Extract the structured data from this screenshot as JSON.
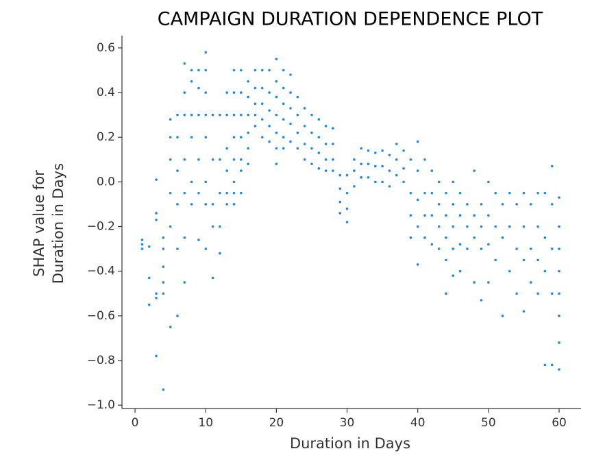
{
  "chart_data": {
    "type": "scatter",
    "title": "CAMPAIGN DURATION DEPENDENCE PLOT",
    "xlabel": "Duration in Days",
    "ylabel": [
      "SHAP value for",
      "Duration in Days"
    ],
    "color": "#1e88e5",
    "xlim": [
      -1.85,
      63.1
    ],
    "ylim": [
      -1.015,
      0.655
    ],
    "xticks": [
      0,
      10,
      20,
      30,
      40,
      50,
      60
    ],
    "yticks": [
      {
        "value": -1.0,
        "label": "−1.0"
      },
      {
        "value": -0.8,
        "label": "−0.8"
      },
      {
        "value": -0.6,
        "label": "−0.6"
      },
      {
        "value": -0.4,
        "label": "−0.4"
      },
      {
        "value": -0.2,
        "label": "−0.2"
      },
      {
        "value": 0.0,
        "label": "0.0"
      },
      0.2,
      0.4,
      0.6
    ],
    "x": [
      1,
      1,
      1,
      2,
      2,
      2,
      3,
      3,
      3,
      3,
      3,
      3,
      4,
      4,
      4,
      4,
      4,
      4,
      5,
      5,
      5,
      5,
      5,
      5,
      6,
      6,
      6,
      6,
      6,
      6,
      7,
      7,
      7,
      7,
      7,
      7,
      7,
      8,
      8,
      8,
      8,
      8,
      8,
      9,
      9,
      9,
      9,
      9,
      9,
      10,
      10,
      10,
      10,
      10,
      10,
      10,
      10,
      11,
      11,
      11,
      11,
      11,
      12,
      12,
      12,
      12,
      12,
      13,
      13,
      13,
      13,
      13,
      13,
      14,
      14,
      14,
      14,
      14,
      14,
      14,
      14,
      15,
      15,
      15,
      15,
      15,
      15,
      15,
      16,
      16,
      16,
      16,
      16,
      16,
      17,
      17,
      17,
      17,
      17,
      18,
      18,
      18,
      18,
      18,
      19,
      19,
      19,
      19,
      19,
      20,
      20,
      20,
      20,
      20,
      20,
      20,
      21,
      21,
      21,
      21,
      21,
      21,
      22,
      22,
      22,
      22,
      22,
      23,
      23,
      23,
      23,
      24,
      24,
      24,
      24,
      25,
      25,
      25,
      25,
      26,
      26,
      26,
      26,
      27,
      27,
      27,
      27,
      28,
      28,
      28,
      28,
      29,
      29,
      29,
      29,
      30,
      30,
      30,
      30,
      31,
      31,
      31,
      32,
      32,
      32,
      33,
      33,
      33,
      34,
      34,
      34,
      35,
      35,
      35,
      36,
      36,
      36,
      37,
      37,
      37,
      38,
      38,
      38,
      39,
      39,
      39,
      39,
      40,
      40,
      40,
      40,
      40,
      41,
      41,
      41,
      41,
      42,
      42,
      42,
      42,
      43,
      43,
      43,
      43,
      44,
      44,
      44,
      44,
      44,
      45,
      45,
      45,
      45,
      45,
      46,
      46,
      46,
      46,
      47,
      47,
      47,
      48,
      48,
      48,
      48,
      49,
      49,
      49,
      49,
      50,
      50,
      50,
      50,
      51,
      51,
      51,
      52,
      52,
      52,
      53,
      53,
      53,
      54,
      54,
      54,
      55,
      55,
      55,
      55,
      56,
      56,
      56,
      57,
      57,
      57,
      57,
      58,
      58,
      58,
      58,
      59,
      59,
      59,
      59,
      59,
      60,
      60,
      60,
      60,
      60,
      60,
      60,
      60
    ],
    "values": [
      -0.26,
      -0.3,
      -0.28,
      -0.29,
      -0.43,
      -0.55,
      -0.78,
      -0.52,
      -0.14,
      0.01,
      -0.5,
      -0.17,
      -0.93,
      -0.45,
      -0.3,
      -0.25,
      -0.38,
      -0.5,
      -0.65,
      0.2,
      0.1,
      -0.05,
      0.28,
      -0.2,
      -0.6,
      -0.3,
      0.05,
      0.2,
      0.3,
      -0.1,
      0.53,
      0.4,
      0.3,
      0.1,
      -0.05,
      -0.25,
      -0.45,
      0.5,
      0.45,
      0.3,
      0.2,
      0.0,
      -0.1,
      0.5,
      0.42,
      0.3,
      0.1,
      -0.05,
      -0.26,
      0.58,
      0.5,
      0.4,
      0.3,
      0.2,
      0.0,
      -0.1,
      -0.3,
      0.3,
      0.1,
      -0.1,
      -0.2,
      -0.43,
      0.3,
      0.1,
      -0.05,
      -0.2,
      -0.32,
      0.4,
      0.3,
      0.15,
      0.05,
      -0.05,
      -0.1,
      0.5,
      0.4,
      0.3,
      0.2,
      0.1,
      0.0,
      -0.05,
      -0.1,
      0.5,
      0.4,
      0.3,
      0.2,
      0.1,
      0.05,
      -0.05,
      0.45,
      0.38,
      0.3,
      0.22,
      0.15,
      0.08,
      0.5,
      0.42,
      0.35,
      0.3,
      0.25,
      0.5,
      0.42,
      0.35,
      0.28,
      0.2,
      0.5,
      0.4,
      0.32,
      0.25,
      0.18,
      0.55,
      0.45,
      0.38,
      0.3,
      0.22,
      0.15,
      0.08,
      0.5,
      0.42,
      0.35,
      0.28,
      0.2,
      0.15,
      0.48,
      0.4,
      0.33,
      0.26,
      0.18,
      0.38,
      0.3,
      0.22,
      0.15,
      0.33,
      0.25,
      0.17,
      0.1,
      0.3,
      0.22,
      0.15,
      0.08,
      0.28,
      0.2,
      0.13,
      0.06,
      0.25,
      0.17,
      0.1,
      0.05,
      0.24,
      0.17,
      0.1,
      0.05,
      0.03,
      -0.03,
      -0.09,
      -0.14,
      0.03,
      -0.05,
      -0.12,
      -0.18,
      0.1,
      0.05,
      -0.02,
      0.15,
      0.08,
      0.02,
      0.14,
      0.08,
      0.02,
      0.13,
      0.07,
      0.0,
      0.14,
      0.07,
      0.0,
      0.12,
      0.05,
      -0.02,
      0.17,
      0.1,
      0.03,
      0.14,
      0.06,
      0.0,
      0.1,
      -0.05,
      -0.15,
      -0.25,
      0.18,
      0.05,
      -0.08,
      -0.2,
      -0.37,
      0.1,
      -0.05,
      -0.15,
      -0.25,
      0.05,
      -0.05,
      -0.15,
      -0.28,
      0.0,
      -0.1,
      -0.2,
      -0.3,
      -0.05,
      -0.15,
      -0.25,
      -0.35,
      -0.5,
      0.0,
      -0.1,
      -0.2,
      -0.3,
      -0.42,
      -0.05,
      -0.15,
      -0.28,
      -0.4,
      -0.1,
      -0.2,
      -0.3,
      0.05,
      -0.15,
      -0.25,
      -0.45,
      -0.1,
      -0.2,
      -0.3,
      -0.53,
      0.0,
      -0.15,
      -0.28,
      -0.45,
      -0.05,
      -0.2,
      -0.35,
      -0.1,
      -0.25,
      -0.6,
      -0.05,
      -0.2,
      -0.4,
      -0.1,
      -0.3,
      -0.5,
      -0.05,
      -0.2,
      -0.35,
      -0.58,
      -0.1,
      -0.3,
      -0.45,
      -0.05,
      -0.2,
      -0.35,
      -0.5,
      -0.05,
      -0.25,
      -0.4,
      -0.82,
      0.07,
      -0.1,
      -0.3,
      -0.5,
      -0.82,
      -0.07,
      -0.2,
      -0.3,
      -0.4,
      -0.5,
      -0.6,
      -0.72,
      -0.84
    ]
  }
}
